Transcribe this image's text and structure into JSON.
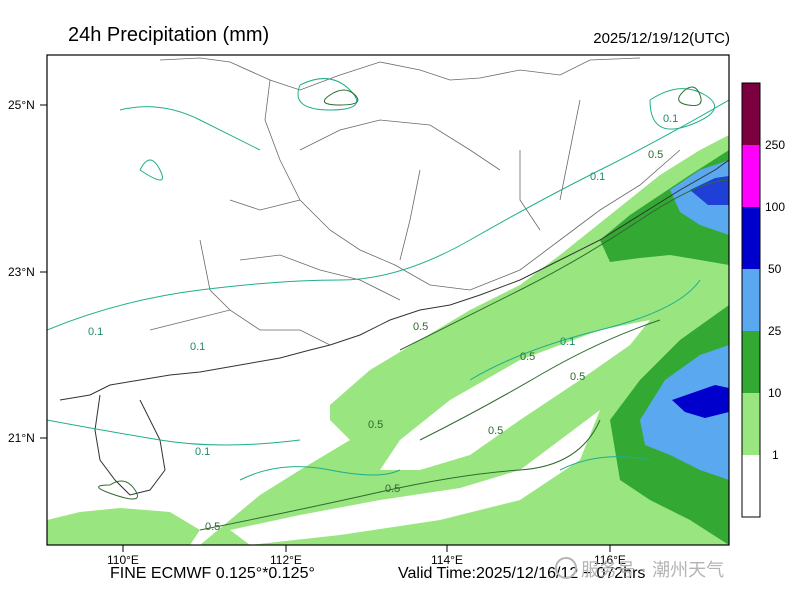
{
  "header": {
    "title": "24h Precipitation (mm)",
    "timestamp": "2025/12/19/12(UTC)"
  },
  "map": {
    "lat_labels": [
      "25°N",
      "23°N",
      "21°N"
    ],
    "lon_labels": [
      "110°E",
      "112°E",
      "114°E",
      "116°E"
    ],
    "contour_labels": [
      "0.1",
      "0.1",
      "0.1",
      "0.1",
      "0.1",
      "0.5",
      "0.5",
      "0.5",
      "0.5",
      "0.5",
      "0.5",
      "0.5",
      "0.1",
      "0.5"
    ]
  },
  "legend": {
    "labels": [
      "250",
      "100",
      "50",
      "25",
      "10",
      "1"
    ],
    "colors": [
      "#7a003f",
      "#ff00ff",
      "#0000cc",
      "#5aa8f0",
      "#33a833",
      "#99e57f",
      "#ffffff"
    ]
  },
  "footer": {
    "model": "FINE ECMWF 0.125°*0.125°",
    "valid_time": "Valid Time:2025/12/16/12 + 072hrs"
  },
  "watermark": {
    "text": "服务号 · 潮州天气"
  },
  "colors": {
    "light_green": "#99e57f",
    "green": "#33a833",
    "light_blue": "#5aa8f0",
    "blue": "#0000cc",
    "contour_teal": "#1fae8c",
    "contour_dark": "#2f6a2f",
    "border": "#555555"
  }
}
